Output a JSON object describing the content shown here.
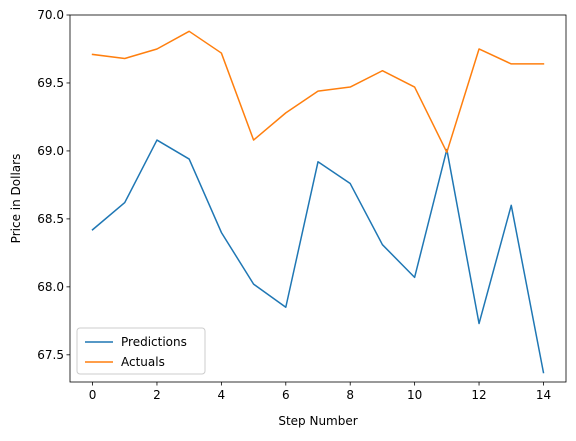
{
  "chart_data": {
    "type": "line",
    "title": "",
    "xlabel": "Step Number",
    "ylabel": "Price in Dollars",
    "xlim": [
      -0.7,
      14.7
    ],
    "ylim": [
      67.3,
      70.0
    ],
    "xticks": [
      0,
      2,
      4,
      6,
      8,
      10,
      12,
      14
    ],
    "xtick_labels": [
      "0",
      "2",
      "4",
      "6",
      "8",
      "10",
      "12",
      "14"
    ],
    "yticks": [
      67.5,
      68.0,
      68.5,
      69.0,
      69.5,
      70.0
    ],
    "ytick_labels": [
      "67.5",
      "68.0",
      "68.5",
      "69.0",
      "69.5",
      "70.0"
    ],
    "grid": false,
    "legend_position": "lower-left",
    "x": [
      0,
      1,
      2,
      3,
      4,
      5,
      6,
      7,
      8,
      9,
      10,
      11,
      12,
      13,
      14
    ],
    "series": [
      {
        "name": "Predictions",
        "color": "#1f77b4",
        "values": [
          68.42,
          68.62,
          69.08,
          68.94,
          68.4,
          68.02,
          67.85,
          68.92,
          68.76,
          68.31,
          68.07,
          69.01,
          67.73,
          68.6,
          67.37
        ]
      },
      {
        "name": "Actuals",
        "color": "#ff7f0e",
        "values": [
          69.71,
          69.68,
          69.75,
          69.88,
          69.72,
          69.08,
          69.28,
          69.44,
          69.47,
          69.59,
          69.47,
          68.99,
          69.75,
          69.64,
          69.64
        ]
      }
    ]
  }
}
